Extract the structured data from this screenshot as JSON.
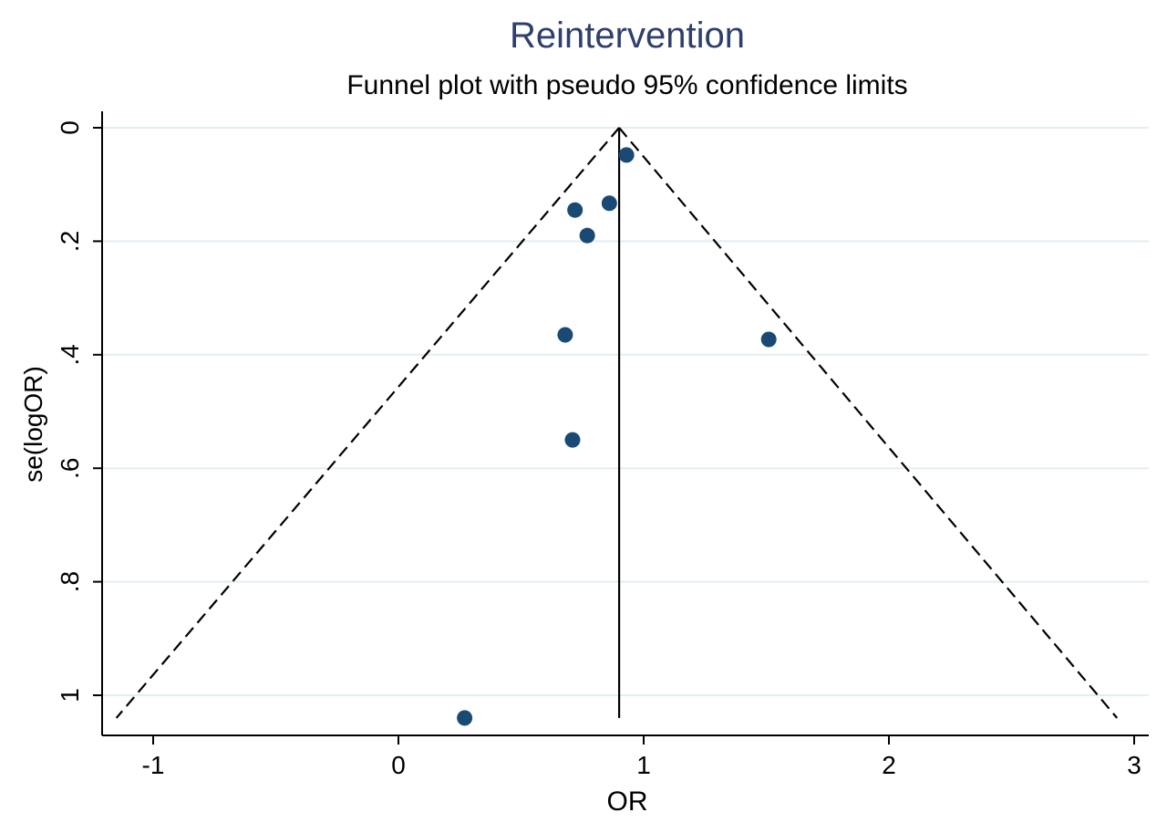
{
  "chart_data": {
    "type": "scatter",
    "title": "Reintervention",
    "subtitle": "Funnel plot with pseudo 95% confidence limits",
    "xlabel": "OR",
    "ylabel": "se(logOR)",
    "xlim": [
      -1.25,
      3.05
    ],
    "ylim": [
      0,
      1.07
    ],
    "y_reversed": true,
    "x_ticks": [
      {
        "value": -1,
        "label": "-1"
      },
      {
        "value": 0,
        "label": "0"
      },
      {
        "value": 1,
        "label": "1"
      },
      {
        "value": 2,
        "label": "2"
      },
      {
        "value": 3,
        "label": "3"
      }
    ],
    "y_ticks": [
      {
        "value": 0,
        "label": "0"
      },
      {
        "value": 0.2,
        "label": ".2"
      },
      {
        "value": 0.4,
        "label": ".4"
      },
      {
        "value": 0.6,
        "label": ".6"
      },
      {
        "value": 0.8,
        "label": ".8"
      },
      {
        "value": 1.0,
        "label": "1"
      }
    ],
    "grid": "horizontal",
    "pooled_effect": 0.9,
    "funnel_limits": {
      "apex": [
        0.9,
        0.0
      ],
      "left_bottom": [
        -1.15,
        1.04
      ],
      "right_bottom": [
        2.93,
        1.04
      ]
    },
    "points": [
      {
        "x": 0.93,
        "y": 0.048
      },
      {
        "x": 0.86,
        "y": 0.133
      },
      {
        "x": 0.72,
        "y": 0.145
      },
      {
        "x": 0.77,
        "y": 0.19
      },
      {
        "x": 0.68,
        "y": 0.365
      },
      {
        "x": 1.51,
        "y": 0.373
      },
      {
        "x": 0.71,
        "y": 0.55
      },
      {
        "x": 0.27,
        "y": 1.04
      }
    ],
    "colors": {
      "title": "#2f3f6b",
      "points": "#1a4a74",
      "grid": "#e3eef2",
      "axis": "#000000"
    }
  }
}
